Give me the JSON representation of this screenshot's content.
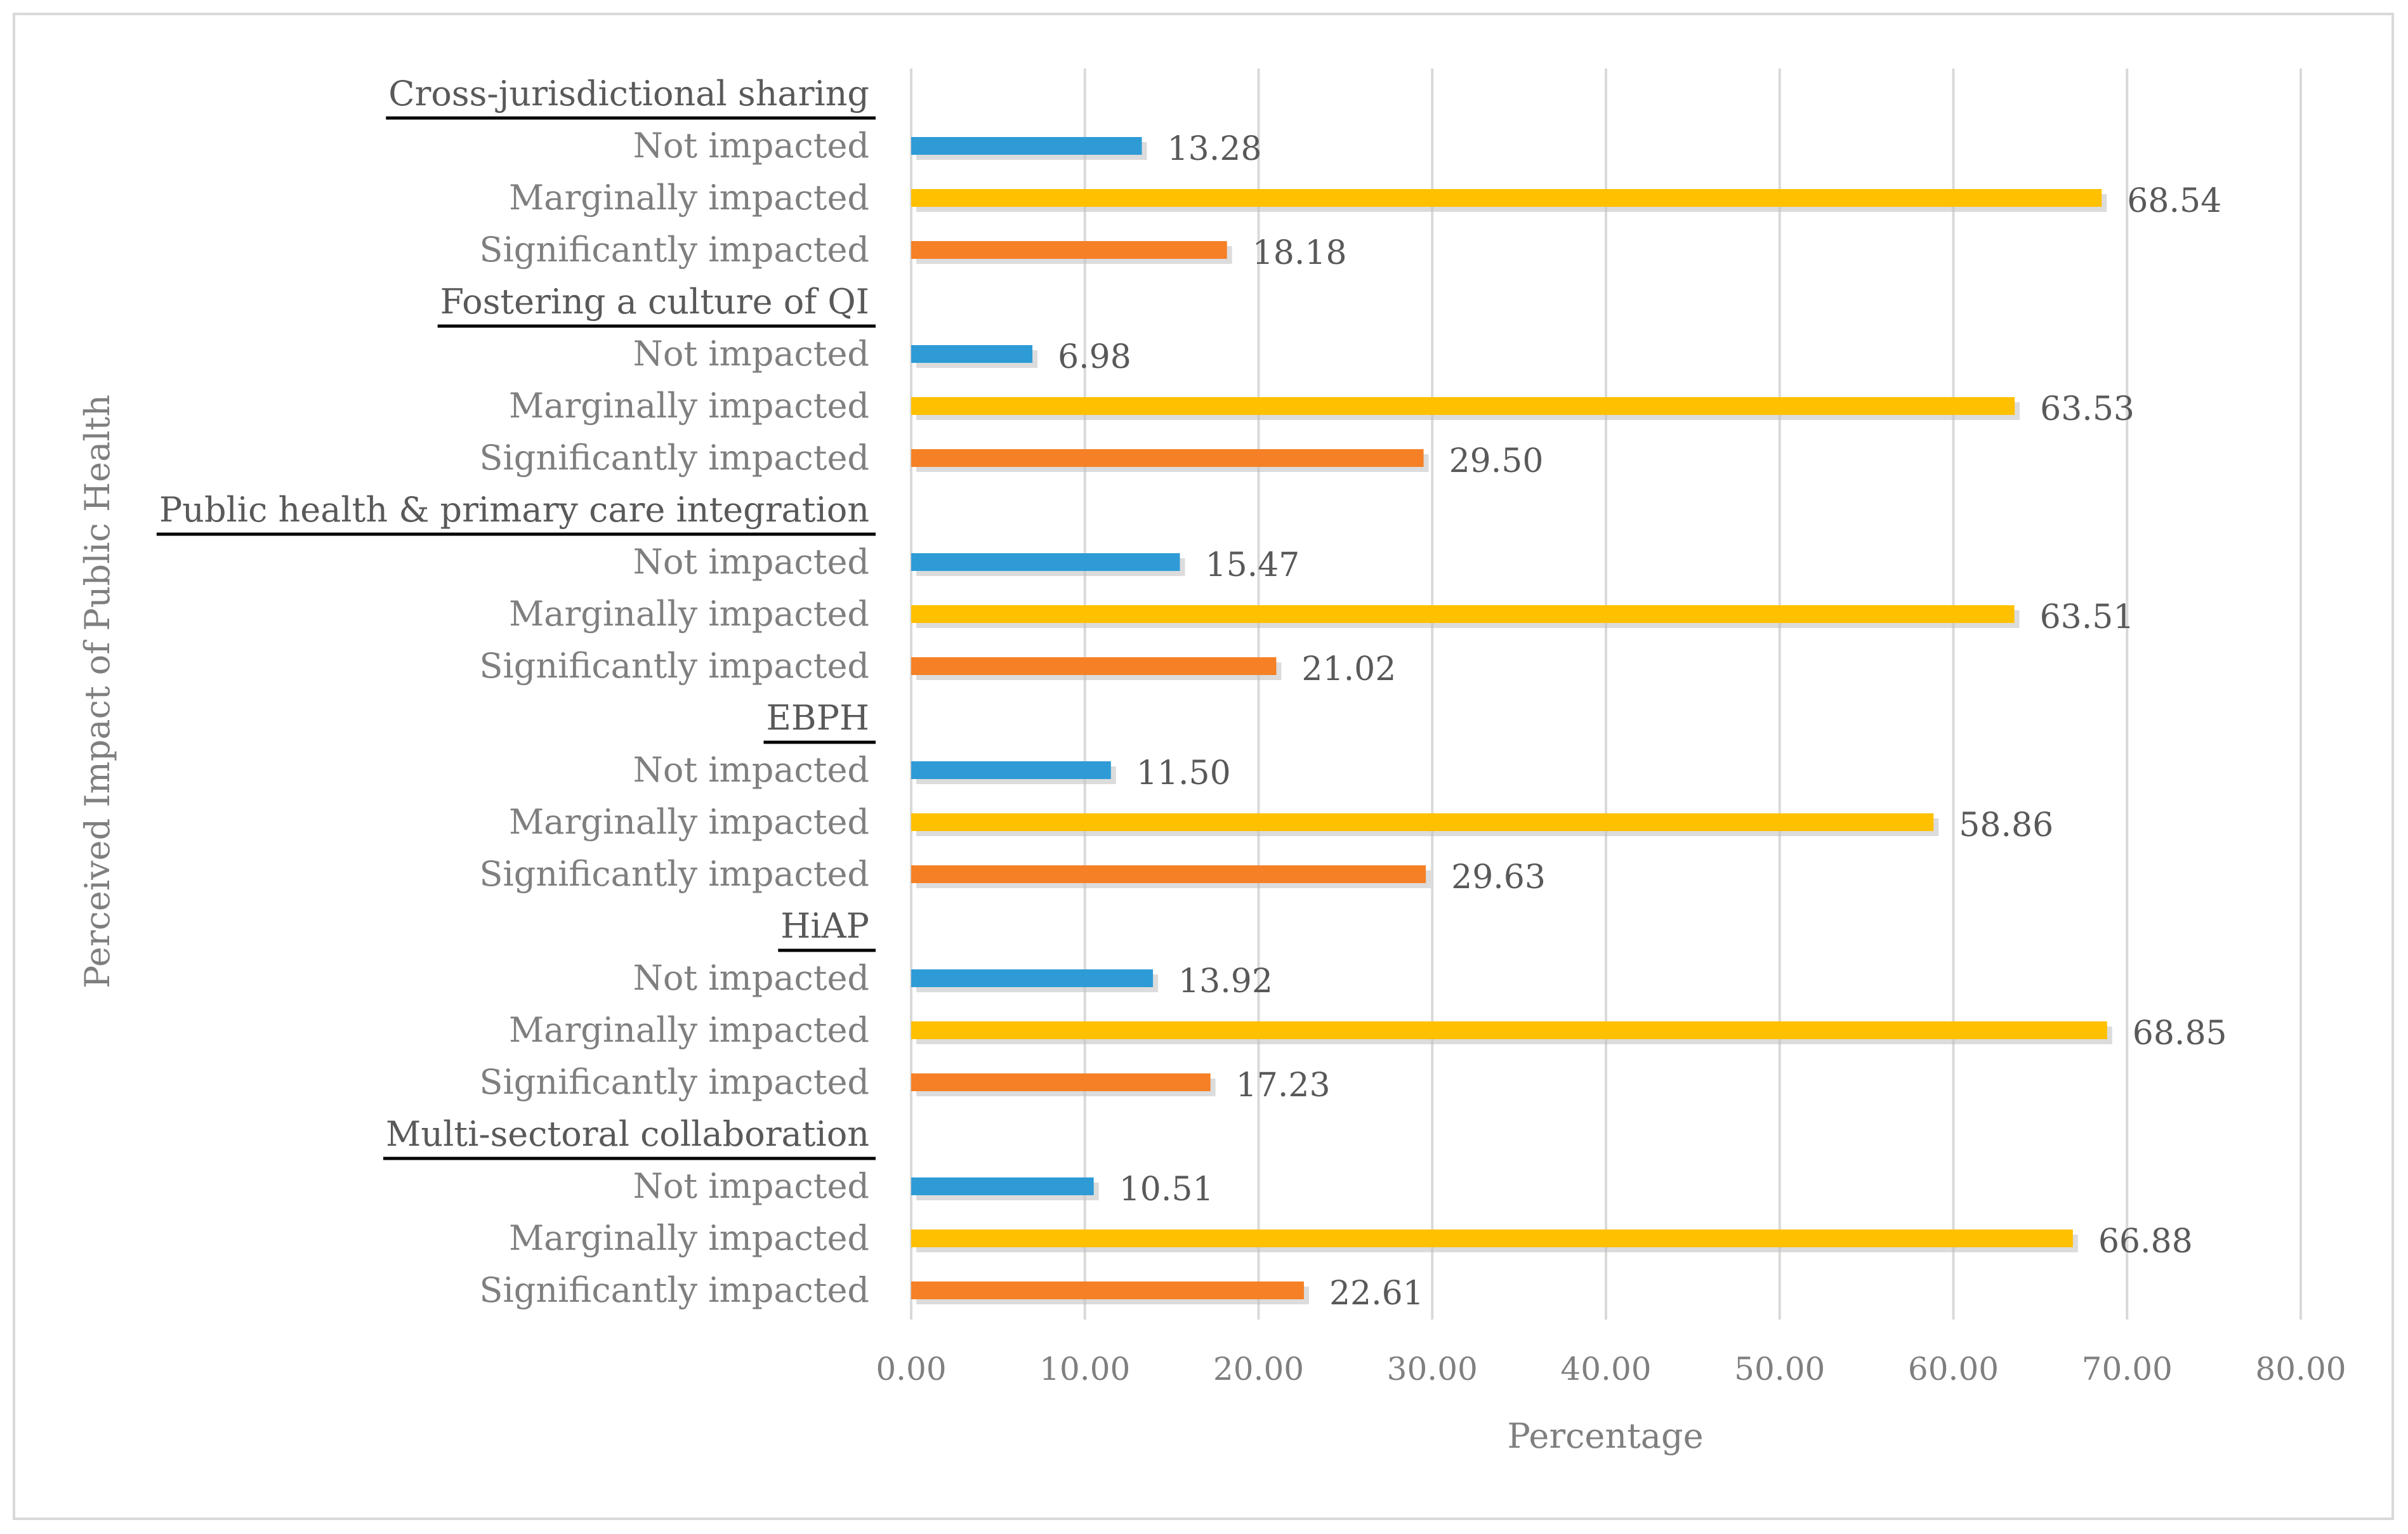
{
  "chart_data": {
    "type": "bar",
    "orientation": "horizontal",
    "xlabel": "Percentage",
    "ylabel": "Perceived Impact of Public Health",
    "xlim": [
      0,
      80
    ],
    "xticks": [
      "0.00",
      "10.00",
      "20.00",
      "30.00",
      "40.00",
      "50.00",
      "60.00",
      "70.00",
      "80.00"
    ],
    "grid": "vertical",
    "legend": "none",
    "colors": {
      "Not impacted": "#2e9bd6",
      "Marginally impacted": "#ffc000",
      "Significantly impacted": "#f58025"
    },
    "groups": [
      {
        "name": "Cross-jurisdictional sharing",
        "items": [
          {
            "label": "Not impacted",
            "value": 13.28,
            "value_label": "13.28"
          },
          {
            "label": "Marginally impacted",
            "value": 68.54,
            "value_label": "68.54"
          },
          {
            "label": "Significantly impacted",
            "value": 18.18,
            "value_label": "18.18"
          }
        ]
      },
      {
        "name": "Fostering a culture of QI",
        "items": [
          {
            "label": "Not impacted",
            "value": 6.98,
            "value_label": "6.98"
          },
          {
            "label": "Marginally impacted",
            "value": 63.53,
            "value_label": "63.53"
          },
          {
            "label": "Significantly impacted",
            "value": 29.5,
            "value_label": "29.50"
          }
        ]
      },
      {
        "name": "Public health & primary care integration",
        "items": [
          {
            "label": "Not impacted",
            "value": 15.47,
            "value_label": "15.47"
          },
          {
            "label": "Marginally impacted",
            "value": 63.51,
            "value_label": "63.51"
          },
          {
            "label": "Significantly impacted",
            "value": 21.02,
            "value_label": "21.02"
          }
        ]
      },
      {
        "name": "EBPH",
        "items": [
          {
            "label": "Not impacted",
            "value": 11.5,
            "value_label": "11.50"
          },
          {
            "label": "Marginally impacted",
            "value": 58.86,
            "value_label": "58.86"
          },
          {
            "label": "Significantly impacted",
            "value": 29.63,
            "value_label": "29.63"
          }
        ]
      },
      {
        "name": "HiAP",
        "items": [
          {
            "label": "Not impacted",
            "value": 13.92,
            "value_label": "13.92"
          },
          {
            "label": "Marginally impacted",
            "value": 68.85,
            "value_label": "68.85"
          },
          {
            "label": "Significantly impacted",
            "value": 17.23,
            "value_label": "17.23"
          }
        ]
      },
      {
        "name": "Multi-sectoral collaboration",
        "items": [
          {
            "label": "Not impacted",
            "value": 10.51,
            "value_label": "10.51"
          },
          {
            "label": "Marginally impacted",
            "value": 66.88,
            "value_label": "66.88"
          },
          {
            "label": "Significantly impacted",
            "value": 22.61,
            "value_label": "22.61"
          }
        ]
      }
    ]
  }
}
